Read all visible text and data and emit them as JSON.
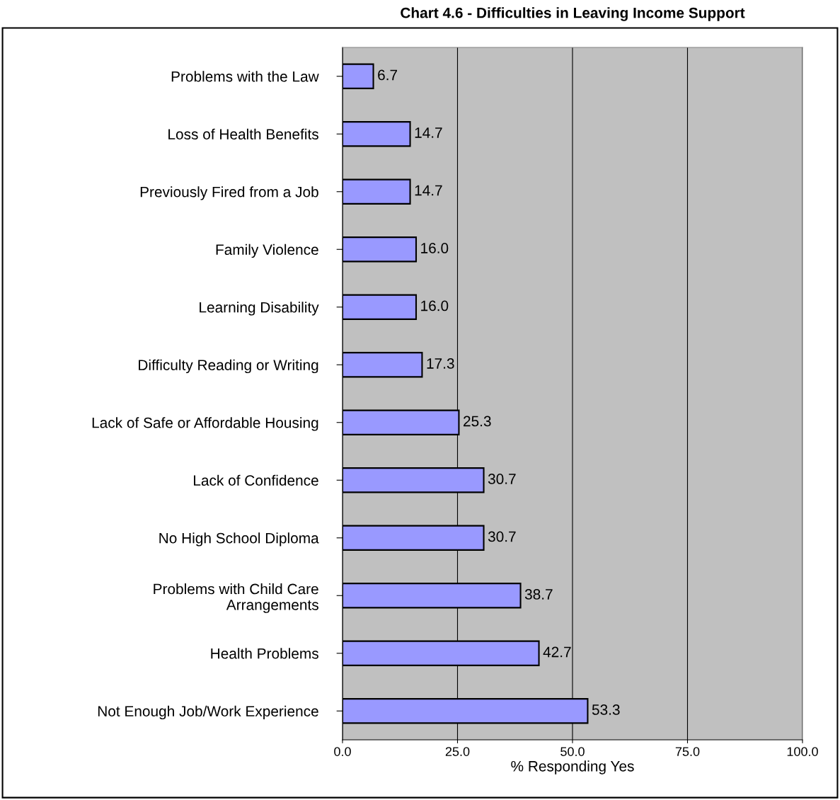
{
  "chart_data": {
    "type": "bar",
    "orientation": "horizontal",
    "title": "Chart 4.6 - Difficulties in Leaving Income Support",
    "xlabel": "% Responding Yes",
    "categories": [
      "Problems with the Law",
      "Loss of Health Benefits",
      "Previously Fired from a Job",
      "Family Violence",
      "Learning Disability",
      "Difficulty Reading or Writing",
      "Lack of Safe or Affordable Housing",
      "Lack of Confidence",
      "No High School Diploma",
      "Problems with Child Care\nArrangements",
      "Health Problems",
      "Not Enough Job/Work Experience"
    ],
    "values": [
      6.7,
      14.7,
      14.7,
      16.0,
      16.0,
      17.3,
      25.3,
      30.7,
      30.7,
      38.7,
      42.7,
      53.3
    ],
    "value_labels": [
      "6.7",
      "14.7",
      "14.7",
      "16.0",
      "16.0",
      "17.3",
      "25.3",
      "30.7",
      "30.7",
      "38.7",
      "42.7",
      "53.3"
    ],
    "color": "#9999ff",
    "xlim": [
      0,
      100
    ],
    "xticks": [
      {
        "value": 0,
        "label": "0.0"
      },
      {
        "value": 25,
        "label": "25.0"
      },
      {
        "value": 50,
        "label": "50.0"
      },
      {
        "value": 75,
        "label": "75.0"
      },
      {
        "value": 100,
        "label": "100.0"
      }
    ],
    "grid": "x",
    "legend": false
  }
}
